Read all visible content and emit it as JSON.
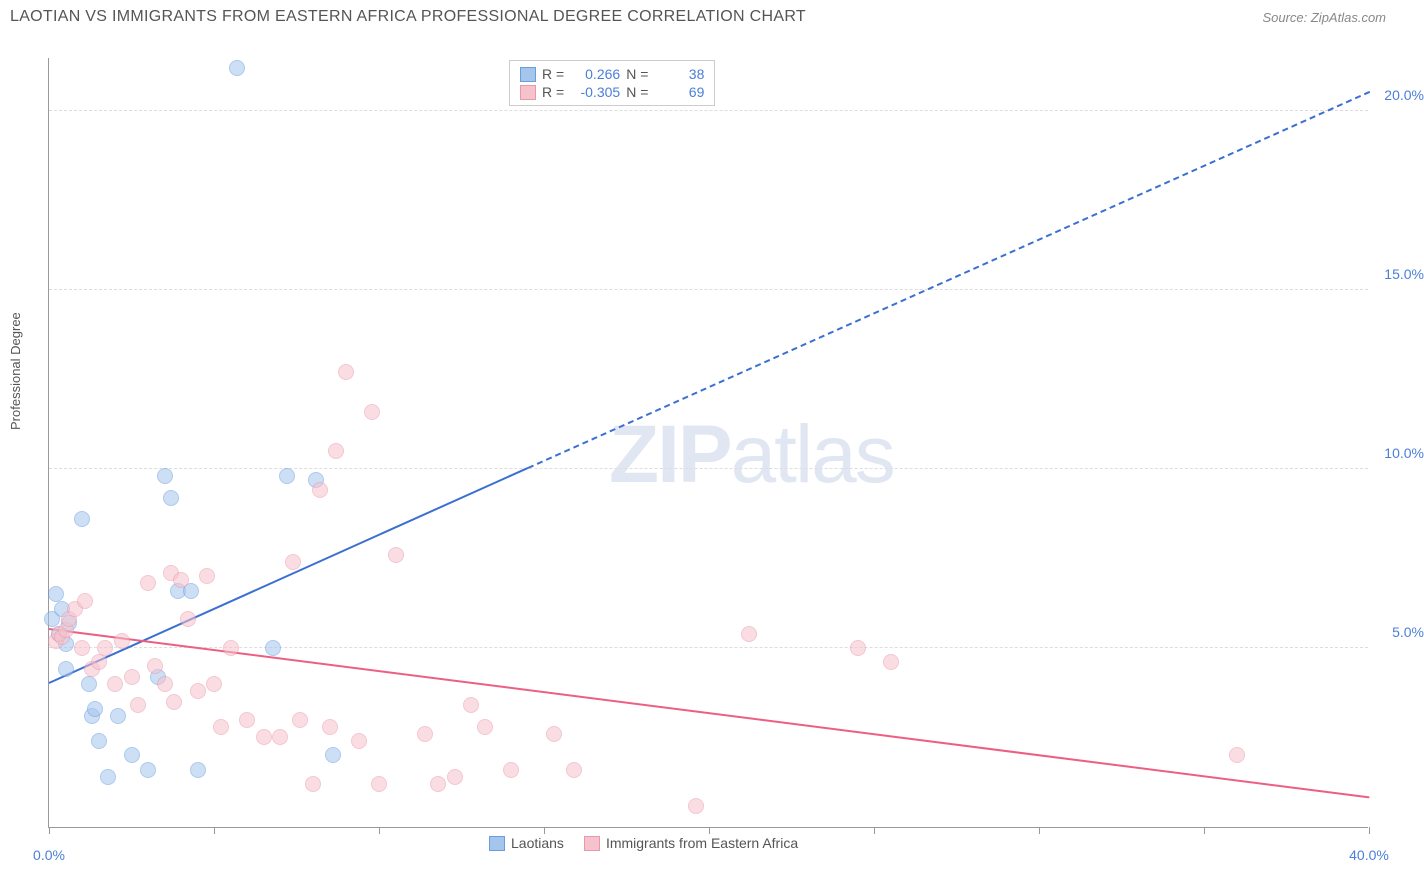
{
  "title": "LAOTIAN VS IMMIGRANTS FROM EASTERN AFRICA PROFESSIONAL DEGREE CORRELATION CHART",
  "source": "Source: ZipAtlas.com",
  "y_axis_label": "Professional Degree",
  "watermark_a": "ZIP",
  "watermark_b": "atlas",
  "chart": {
    "type": "scatter",
    "background_color": "#ffffff",
    "grid_color": "#dddddd",
    "axis_color": "#999999",
    "xlim": [
      0,
      40
    ],
    "ylim": [
      0,
      21.5
    ],
    "x_ticks": [
      0,
      5,
      10,
      15,
      20,
      25,
      30,
      35,
      40
    ],
    "x_tick_labels": [
      "0.0%",
      "",
      "",
      "",
      "",
      "",
      "",
      "",
      "40.0%"
    ],
    "y_ticks": [
      5,
      10,
      15,
      20
    ],
    "y_tick_labels": [
      "5.0%",
      "10.0%",
      "15.0%",
      "20.0%"
    ],
    "point_radius": 8,
    "point_opacity": 0.55,
    "series": [
      {
        "name": "Laotians",
        "color_fill": "#a6c5ed",
        "color_stroke": "#6a9de0",
        "R": "0.266",
        "N": "38",
        "trend": {
          "x1": 0,
          "y1": 4.0,
          "x2_solid": 14.5,
          "y2_solid": 10.0,
          "x2": 40,
          "y2": 20.5,
          "color": "#3b6fd1"
        },
        "points": [
          [
            0.1,
            5.8
          ],
          [
            0.2,
            6.5
          ],
          [
            0.3,
            5.4
          ],
          [
            0.4,
            6.1
          ],
          [
            0.5,
            5.1
          ],
          [
            0.5,
            4.4
          ],
          [
            0.6,
            5.7
          ],
          [
            1.0,
            8.6
          ],
          [
            1.2,
            4.0
          ],
          [
            1.3,
            3.1
          ],
          [
            1.4,
            3.3
          ],
          [
            1.5,
            2.4
          ],
          [
            1.8,
            1.4
          ],
          [
            2.1,
            3.1
          ],
          [
            2.5,
            2.0
          ],
          [
            3.0,
            1.6
          ],
          [
            3.3,
            4.2
          ],
          [
            3.5,
            9.8
          ],
          [
            3.7,
            9.2
          ],
          [
            3.9,
            6.6
          ],
          [
            4.3,
            6.6
          ],
          [
            4.5,
            1.6
          ],
          [
            5.7,
            21.2
          ],
          [
            6.8,
            5.0
          ],
          [
            7.2,
            9.8
          ],
          [
            8.1,
            9.7
          ],
          [
            8.6,
            2.0
          ]
        ]
      },
      {
        "name": "Immigrants from Eastern Africa",
        "color_fill": "#f6c2cd",
        "color_stroke": "#ec98ac",
        "R": "-0.305",
        "N": "69",
        "trend": {
          "x1": 0,
          "y1": 5.5,
          "x2_solid": 40,
          "y2_solid": 0.8,
          "x2": 40,
          "y2": 0.8,
          "color": "#ec5f82"
        },
        "points": [
          [
            0.2,
            5.2
          ],
          [
            0.3,
            5.4
          ],
          [
            0.4,
            5.3
          ],
          [
            0.5,
            5.5
          ],
          [
            0.6,
            5.8
          ],
          [
            0.8,
            6.1
          ],
          [
            1.0,
            5.0
          ],
          [
            1.1,
            6.3
          ],
          [
            1.3,
            4.4
          ],
          [
            1.5,
            4.6
          ],
          [
            1.7,
            5.0
          ],
          [
            2.0,
            4.0
          ],
          [
            2.2,
            5.2
          ],
          [
            2.5,
            4.2
          ],
          [
            2.7,
            3.4
          ],
          [
            3.0,
            6.8
          ],
          [
            3.2,
            4.5
          ],
          [
            3.5,
            4.0
          ],
          [
            3.7,
            7.1
          ],
          [
            3.8,
            3.5
          ],
          [
            4.0,
            6.9
          ],
          [
            4.2,
            5.8
          ],
          [
            4.5,
            3.8
          ],
          [
            4.8,
            7.0
          ],
          [
            5.0,
            4.0
          ],
          [
            5.2,
            2.8
          ],
          [
            5.5,
            5.0
          ],
          [
            6.0,
            3.0
          ],
          [
            6.5,
            2.5
          ],
          [
            7.0,
            2.5
          ],
          [
            7.4,
            7.4
          ],
          [
            7.6,
            3.0
          ],
          [
            8.0,
            1.2
          ],
          [
            8.2,
            9.4
          ],
          [
            8.5,
            2.8
          ],
          [
            8.7,
            10.5
          ],
          [
            9.0,
            12.7
          ],
          [
            9.4,
            2.4
          ],
          [
            9.8,
            11.6
          ],
          [
            10.0,
            1.2
          ],
          [
            10.5,
            7.6
          ],
          [
            11.4,
            2.6
          ],
          [
            11.8,
            1.2
          ],
          [
            12.3,
            1.4
          ],
          [
            12.8,
            3.4
          ],
          [
            13.2,
            2.8
          ],
          [
            14.0,
            1.6
          ],
          [
            15.3,
            2.6
          ],
          [
            15.9,
            1.6
          ],
          [
            19.6,
            0.6
          ],
          [
            21.2,
            5.4
          ],
          [
            24.5,
            5.0
          ],
          [
            25.5,
            4.6
          ],
          [
            36.0,
            2.0
          ]
        ]
      }
    ]
  },
  "legend_labels": {
    "R_prefix": "R =",
    "N_prefix": "N ="
  }
}
